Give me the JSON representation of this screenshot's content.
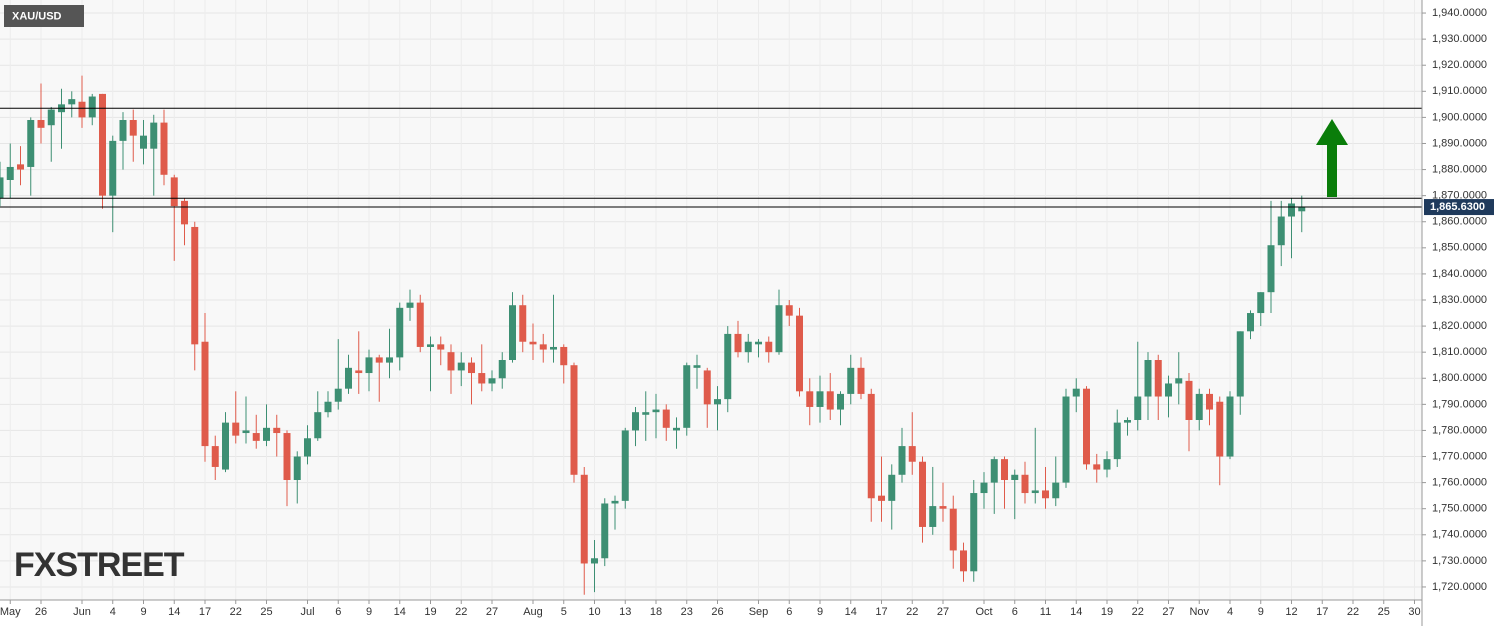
{
  "chart_data": {
    "type": "candlestick",
    "title": "XAU/USD",
    "watermark": "FXSTREET",
    "up_color": "#3d8f73",
    "down_color": "#df5b4b",
    "grid": true,
    "ylim": [
      1715,
      1945
    ],
    "yticks": [
      {
        "value": 1720,
        "label": "1,720.0000"
      },
      {
        "value": 1730,
        "label": "1,730.0000"
      },
      {
        "value": 1740,
        "label": "1,740.0000"
      },
      {
        "value": 1750,
        "label": "1,750.0000"
      },
      {
        "value": 1760,
        "label": "1,760.0000"
      },
      {
        "value": 1770,
        "label": "1,770.0000"
      },
      {
        "value": 1780,
        "label": "1,780.0000"
      },
      {
        "value": 1790,
        "label": "1,790.0000"
      },
      {
        "value": 1800,
        "label": "1,800.0000"
      },
      {
        "value": 1810,
        "label": "1,810.0000"
      },
      {
        "value": 1820,
        "label": "1,820.0000"
      },
      {
        "value": 1830,
        "label": "1,830.0000"
      },
      {
        "value": 1840,
        "label": "1,840.0000"
      },
      {
        "value": 1850,
        "label": "1,850.0000"
      },
      {
        "value": 1860,
        "label": "1,860.0000"
      },
      {
        "value": 1870,
        "label": "1,870.0000"
      },
      {
        "value": 1880,
        "label": "1,880.0000"
      },
      {
        "value": 1890,
        "label": "1,890.0000"
      },
      {
        "value": 1900,
        "label": "1,900.0000"
      },
      {
        "value": 1910,
        "label": "1,910.0000"
      },
      {
        "value": 1920,
        "label": "1,920.0000"
      },
      {
        "value": 1930,
        "label": "1,930.0000"
      },
      {
        "value": 1940,
        "label": "1,940.0000"
      }
    ],
    "hlines": [
      1903.5,
      1869
    ],
    "price_marker": {
      "value": 1865.63,
      "label": "1,865.6300"
    },
    "categories": [
      null,
      "May",
      null,
      null,
      "26",
      null,
      null,
      null,
      "Jun",
      null,
      null,
      "4",
      null,
      null,
      "9",
      null,
      null,
      "14",
      null,
      null,
      "17",
      null,
      null,
      "22",
      null,
      null,
      "25",
      null,
      null,
      null,
      "Jul",
      null,
      null,
      "6",
      null,
      null,
      "9",
      null,
      null,
      "14",
      null,
      null,
      "19",
      null,
      null,
      "22",
      null,
      null,
      "27",
      null,
      null,
      null,
      "Aug",
      null,
      null,
      "5",
      null,
      null,
      "10",
      null,
      null,
      "13",
      null,
      null,
      "18",
      null,
      null,
      "23",
      null,
      null,
      "26",
      null,
      null,
      null,
      "Sep",
      null,
      null,
      "6",
      null,
      null,
      "9",
      null,
      null,
      "14",
      null,
      null,
      "17",
      null,
      null,
      "22",
      null,
      null,
      "27",
      null,
      null,
      null,
      "Oct",
      null,
      null,
      "6",
      null,
      null,
      "11",
      null,
      null,
      "14",
      null,
      null,
      "19",
      null,
      null,
      "22",
      null,
      null,
      "27",
      null,
      null,
      "Nov",
      null,
      null,
      "4",
      null,
      null,
      "9",
      null,
      null,
      "12",
      null,
      null,
      "17",
      null,
      null,
      "22",
      null,
      null,
      "25",
      null,
      null,
      "30"
    ],
    "open": [
      1869,
      1876,
      1882,
      1881,
      1899,
      1897,
      1902,
      1905,
      1906,
      1900,
      1909,
      1870,
      1891,
      1899,
      1888,
      1888,
      1898,
      1877,
      1868,
      1858,
      1814,
      1774,
      1765,
      1783,
      1779,
      1779,
      1776,
      1781,
      1779,
      1761,
      1770,
      1777,
      1787,
      1791,
      1796,
      1803,
      1802,
      1808,
      1806,
      1808,
      1827,
      1829,
      1812,
      1813,
      1810,
      1803,
      1806,
      1802,
      1798,
      1800,
      1807,
      1828,
      1814,
      1813,
      1811,
      1812,
      1805,
      1763,
      1729,
      1731,
      1752,
      1753,
      1780,
      1786,
      1787,
      1788,
      1780,
      1781,
      1804,
      1803,
      1790,
      1792,
      1817,
      1810,
      1813,
      1814,
      1810,
      1828,
      1824,
      1795,
      1789,
      1795,
      1788,
      1794,
      1804,
      1794,
      1755,
      1753,
      1763,
      1774,
      1768,
      1743,
      1751,
      1750,
      1734,
      1726,
      1756,
      1760,
      1769,
      1761,
      1763,
      1756,
      1757,
      1754,
      1760,
      1793,
      1796,
      1767,
      1765,
      1769,
      1783,
      1784,
      1793,
      1807,
      1793,
      1798,
      1799,
      1784,
      1794,
      1791,
      1770,
      1793,
      1818,
      1825,
      1833,
      1851,
      1862,
      1864,
      null,
      null,
      null,
      null,
      null,
      null,
      null,
      null,
      null,
      null,
      null
    ],
    "high": [
      1883,
      1890,
      1889,
      1900,
      1913,
      1904,
      1911,
      1910,
      1916,
      1909,
      1909,
      1893,
      1902,
      1903,
      1899,
      1901,
      1903,
      1878,
      1869,
      1860,
      1825,
      1778,
      1787,
      1795,
      1793,
      1786,
      1790,
      1786,
      1780,
      1772,
      1782,
      1795,
      1795,
      1815,
      1809,
      1818,
      1811,
      1809,
      1819,
      1829,
      1834,
      1832,
      1816,
      1816,
      1813,
      1810,
      1808,
      1813,
      1803,
      1810,
      1833,
      1832,
      1821,
      1817,
      1832,
      1813,
      1806,
      1766,
      1738,
      1754,
      1755,
      1781,
      1789,
      1795,
      1794,
      1790,
      1785,
      1806,
      1809,
      1804,
      1797,
      1820,
      1822,
      1817,
      1815,
      1816,
      1834,
      1830,
      1827,
      1800,
      1801,
      1802,
      1795,
      1809,
      1808,
      1796,
      1770,
      1767,
      1781,
      1787,
      1770,
      1766,
      1760,
      1755,
      1737,
      1761,
      1764,
      1770,
      1770,
      1765,
      1768,
      1781,
      1766,
      1770,
      1796,
      1800,
      1797,
      1771,
      1772,
      1788,
      1785,
      1814,
      1810,
      1809,
      1801,
      1810,
      1802,
      1796,
      1796,
      1793,
      1795,
      1818,
      1826,
      1833,
      1868,
      1868,
      1869,
      1870,
      null,
      null,
      null,
      null,
      null,
      null,
      null,
      null,
      null,
      null,
      null
    ],
    "low": [
      1866,
      1869,
      1874,
      1870,
      1890,
      1883,
      1888,
      1900,
      1896,
      1897,
      1865,
      1856,
      1880,
      1883,
      1882,
      1870,
      1874,
      1845,
      1851,
      1803,
      1768,
      1761,
      1764,
      1775,
      1775,
      1773,
      1774,
      1770,
      1751,
      1752,
      1767,
      1776,
      1785,
      1788,
      1794,
      1794,
      1795,
      1791,
      1800,
      1803,
      1822,
      1810,
      1795,
      1805,
      1794,
      1797,
      1790,
      1795,
      1795,
      1796,
      1806,
      1810,
      1807,
      1806,
      1806,
      1798,
      1760,
      1717,
      1718,
      1728,
      1742,
      1750,
      1774,
      1776,
      1777,
      1776,
      1773,
      1778,
      1796,
      1781,
      1780,
      1787,
      1808,
      1806,
      1808,
      1806,
      1809,
      1820,
      1793,
      1782,
      1783,
      1784,
      1782,
      1790,
      1792,
      1745,
      1745,
      1742,
      1760,
      1763,
      1737,
      1740,
      1745,
      1727,
      1722,
      1722,
      1750,
      1748,
      1750,
      1746,
      1752,
      1752,
      1750,
      1751,
      1758,
      1787,
      1765,
      1760,
      1762,
      1766,
      1778,
      1780,
      1784,
      1784,
      1785,
      1790,
      1772,
      1780,
      1782,
      1759,
      1769,
      1786,
      1815,
      1820,
      1825,
      1843,
      1846,
      1856,
      null,
      null,
      null,
      null,
      null,
      null,
      null,
      null,
      null,
      null,
      null
    ],
    "close": [
      1877,
      1881,
      1880,
      1899,
      1896,
      1903,
      1905,
      1907,
      1900,
      1908,
      1870,
      1891,
      1899,
      1893,
      1893,
      1898,
      1878,
      1866,
      1859,
      1813,
      1774,
      1766,
      1783,
      1778,
      1780,
      1776,
      1781,
      1779,
      1761,
      1770,
      1777,
      1787,
      1791,
      1796,
      1804,
      1802,
      1808,
      1806,
      1808,
      1827,
      1829,
      1812,
      1813,
      1811,
      1803,
      1806,
      1802,
      1798,
      1800,
      1807,
      1828,
      1814,
      1813,
      1811,
      1812,
      1805,
      1763,
      1729,
      1731,
      1752,
      1753,
      1780,
      1787,
      1787,
      1788,
      1781,
      1781,
      1805,
      1805,
      1790,
      1792,
      1817,
      1810,
      1814,
      1814,
      1810,
      1828,
      1824,
      1795,
      1789,
      1795,
      1788,
      1794,
      1804,
      1794,
      1754,
      1753,
      1763,
      1774,
      1768,
      1743,
      1751,
      1750,
      1734,
      1726,
      1756,
      1760,
      1769,
      1761,
      1763,
      1756,
      1757,
      1754,
      1760,
      1793,
      1796,
      1767,
      1765,
      1769,
      1783,
      1784,
      1793,
      1807,
      1793,
      1798,
      1800,
      1784,
      1794,
      1788,
      1770,
      1793,
      1818,
      1825,
      1833,
      1851,
      1862,
      1867,
      1865.63,
      null,
      null,
      null,
      null,
      null,
      null,
      null,
      null,
      null,
      null,
      null
    ]
  }
}
